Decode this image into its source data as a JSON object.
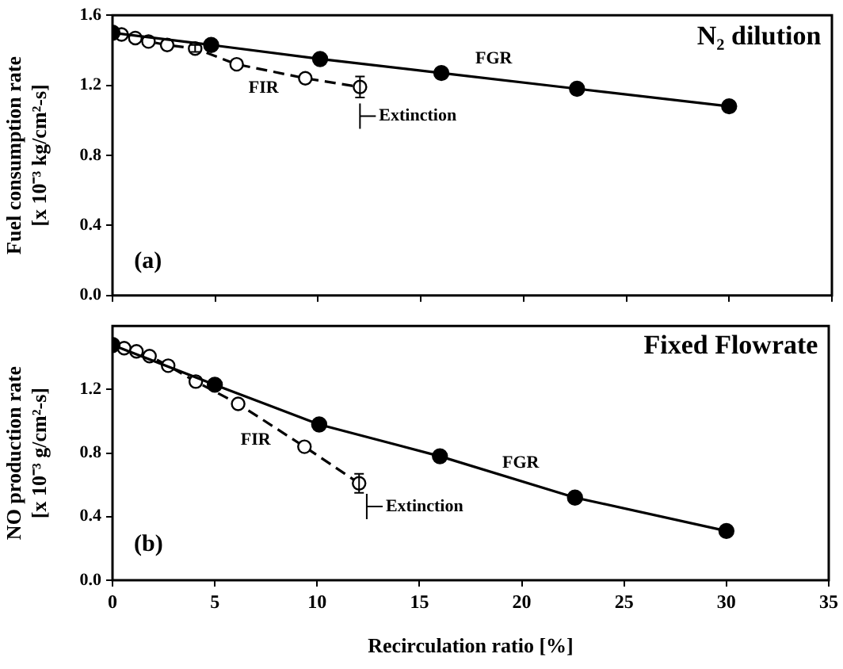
{
  "chart_data": [
    {
      "type": "line",
      "ylabel": "Fuel consumption rate\n[x 10⁻³ kg/cm²-s]",
      "xlim": [
        0,
        35
      ],
      "xticks": [
        0,
        5,
        10,
        15,
        20,
        25,
        30,
        35
      ],
      "ylim": [
        0,
        1.6
      ],
      "yticks": [
        {
          "value": 0,
          "label": "0.0"
        },
        {
          "value": 0.4,
          "label": "0.4"
        },
        {
          "value": 0.8,
          "label": "0.8"
        },
        {
          "value": 1.2,
          "label": "1.2"
        },
        {
          "value": 1.6,
          "label": "1.6"
        }
      ],
      "tick_labels": "y",
      "grid": false,
      "legend": false,
      "marker": "circle",
      "series": [
        {
          "color": "#000000",
          "line_style": "solid",
          "x": [
            0,
            4.8,
            10.1,
            16.0,
            22.6,
            30
          ],
          "values": [
            1.5,
            1.43,
            1.35,
            1.27,
            1.18,
            1.08
          ]
        },
        {
          "color": "#000000",
          "line_style": "dashed",
          "x": [
            0.44,
            1.11,
            1.75,
            2.66,
            4.02,
            6.04,
            9.38,
            12.04
          ],
          "values": [
            1.49,
            1.47,
            1.45,
            1.43,
            1.41,
            1.32,
            1.24,
            1.19
          ],
          "errors": [
            null,
            null,
            null,
            null,
            0.02,
            null,
            null,
            0.06
          ]
        }
      ],
      "annotations": [
        "N₂ dilution",
        "(a)",
        "FGR",
        "FIR",
        "Extinction"
      ]
    },
    {
      "type": "line",
      "xlabel": "Recirculation ratio [%]",
      "ylabel": "NO production rate\n[x 10⁻³ g/cm²-s]",
      "xlim": [
        0,
        35
      ],
      "xticks": [
        0,
        5,
        10,
        15,
        20,
        25,
        30,
        35
      ],
      "ylim": [
        0,
        1.6
      ],
      "yticks": [
        {
          "value": 0,
          "label": "0.0"
        },
        {
          "value": 0.4,
          "label": "0.4"
        },
        {
          "value": 0.8,
          "label": "0.8"
        },
        {
          "value": 1.2,
          "label": "1.2"
        }
      ],
      "grid": false,
      "legend": false,
      "marker": "circle",
      "series": [
        {
          "color": "#000000",
          "line_style": "solid",
          "x": [
            0,
            5,
            10.1,
            16.0,
            22.6,
            30
          ],
          "values": [
            1.48,
            1.23,
            0.98,
            0.78,
            0.52,
            0.31
          ]
        },
        {
          "color": "#000000",
          "line_style": "dashed",
          "x": [
            0.57,
            1.17,
            1.81,
            2.72,
            4.07,
            6.14,
            9.38,
            12.05
          ],
          "values": [
            1.46,
            1.44,
            1.41,
            1.35,
            1.25,
            1.11,
            0.84,
            0.61
          ],
          "errors": [
            null,
            null,
            null,
            null,
            null,
            null,
            null,
            0.06
          ]
        }
      ],
      "annotations": [
        "Fixed Flowrate",
        "(b)",
        "FGR",
        "FIR",
        "Extinction"
      ]
    }
  ]
}
